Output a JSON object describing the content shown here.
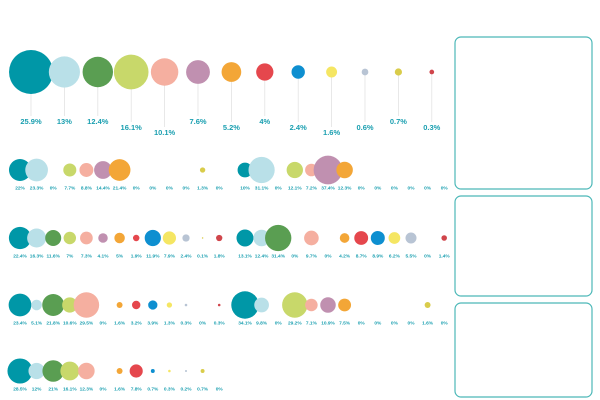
{
  "chart_data": [
    {
      "type": "bubble",
      "values": [
        25.9,
        13,
        12.4,
        16.1,
        10.1,
        7.6,
        5.2,
        4,
        2.4,
        1.6,
        0.6,
        0.7,
        0.3
      ],
      "value_labels": [
        "25.9%",
        "13%",
        "12.4%",
        "16.1%",
        "10.1%",
        "7.6%",
        "5.2%",
        "4%",
        "2.4%",
        "1.6%",
        "0.6%",
        "0.7%",
        "0.3%"
      ],
      "colors": [
        "#0097a7",
        "#b9e0e8",
        "#5a9e52",
        "#c8d86a",
        "#f5afa0",
        "#c090b0",
        "#f3a637",
        "#e5474d",
        "#0e8fd0",
        "#f5e663",
        "#b8c4d4",
        "#d9cc4a",
        "#d0454b"
      ]
    },
    {
      "type": "bubble",
      "values": [
        22,
        23.3,
        0,
        7.7,
        8.8,
        14.4,
        21.4,
        0,
        0,
        0,
        0,
        1.3,
        0
      ],
      "value_labels": [
        "22%",
        "23.3%",
        "0%",
        "7.7%",
        "8.8%",
        "14.4%",
        "21.4%",
        "0%",
        "0%",
        "0%",
        "0%",
        "1.3%",
        "0%"
      ],
      "colors": [
        "#0097a7",
        "#b9e0e8",
        "#5a9e52",
        "#c8d86a",
        "#f5afa0",
        "#c090b0",
        "#f3a637",
        "#e5474d",
        "#0e8fd0",
        "#f5e663",
        "#b8c4d4",
        "#d9cc4a",
        "#d0454b"
      ]
    },
    {
      "type": "bubble",
      "values": [
        10,
        31.1,
        0,
        12.1,
        7.2,
        37.4,
        12.3,
        0,
        0,
        0,
        0,
        0,
        0
      ],
      "value_labels": [
        "10%",
        "31.1%",
        "0%",
        "12.1%",
        "7.2%",
        "37.4%",
        "12.3%",
        "0%",
        "0%",
        "0%",
        "0%",
        "0%",
        "0%"
      ],
      "colors": [
        "#0097a7",
        "#b9e0e8",
        "#5a9e52",
        "#c8d86a",
        "#f5afa0",
        "#c090b0",
        "#f3a637",
        "#e5474d",
        "#0e8fd0",
        "#f5e663",
        "#b8c4d4",
        "#d9cc4a",
        "#d0454b"
      ]
    },
    {
      "type": "bubble",
      "values": [
        22.4,
        16.3,
        11.6,
        7,
        7.3,
        4.1,
        5,
        1.9,
        11.9,
        7.9,
        2.4,
        0.1,
        1.8
      ],
      "value_labels": [
        "22.4%",
        "16.3%",
        "11.6%",
        "7%",
        "7.3%",
        "4.1%",
        "5%",
        "1.9%",
        "11.9%",
        "7.9%",
        "2.4%",
        "0.1%",
        "1.8%"
      ],
      "colors": [
        "#0097a7",
        "#b9e0e8",
        "#5a9e52",
        "#c8d86a",
        "#f5afa0",
        "#c090b0",
        "#f3a637",
        "#e5474d",
        "#0e8fd0",
        "#f5e663",
        "#b8c4d4",
        "#d9cc4a",
        "#d0454b"
      ]
    },
    {
      "type": "bubble",
      "values": [
        13.1,
        12.4,
        31.4,
        0,
        9.7,
        0,
        4.2,
        8.7,
        8.9,
        6.2,
        5.5,
        0,
        1.4
      ],
      "value_labels": [
        "13.1%",
        "12.4%",
        "31.4%",
        "0%",
        "9.7%",
        "0%",
        "4.2%",
        "8.7%",
        "8.9%",
        "6.2%",
        "5.5%",
        "0%",
        "1.4%"
      ],
      "colors": [
        "#0097a7",
        "#b9e0e8",
        "#5a9e52",
        "#c8d86a",
        "#f5afa0",
        "#c090b0",
        "#f3a637",
        "#e5474d",
        "#0e8fd0",
        "#f5e663",
        "#b8c4d4",
        "#d9cc4a",
        "#d0454b"
      ]
    },
    {
      "type": "bubble",
      "values": [
        23.4,
        5.1,
        21.8,
        10.6,
        29.5,
        0,
        1.6,
        3.2,
        3.9,
        1.3,
        0.3,
        0,
        0.3
      ],
      "value_labels": [
        "23.4%",
        "5.1%",
        "21.8%",
        "10.6%",
        "29.5%",
        "0%",
        "1.6%",
        "3.2%",
        "3.9%",
        "1.3%",
        "0.3%",
        "0%",
        "0.3%"
      ],
      "colors": [
        "#0097a7",
        "#b9e0e8",
        "#5a9e52",
        "#c8d86a",
        "#f5afa0",
        "#c090b0",
        "#f3a637",
        "#e5474d",
        "#0e8fd0",
        "#f5e663",
        "#b8c4d4",
        "#d9cc4a",
        "#d0454b"
      ]
    },
    {
      "type": "bubble",
      "values": [
        34.1,
        9.8,
        0,
        29.2,
        7.1,
        10.9,
        7.5,
        0,
        0,
        0,
        0,
        1.6,
        0
      ],
      "value_labels": [
        "34.1%",
        "9.8%",
        "0%",
        "29.2%",
        "7.1%",
        "10.9%",
        "7.5%",
        "0%",
        "0%",
        "0%",
        "0%",
        "1.6%",
        "0%"
      ],
      "colors": [
        "#0097a7",
        "#b9e0e8",
        "#5a9e52",
        "#c8d86a",
        "#f5afa0",
        "#c090b0",
        "#f3a637",
        "#e5474d",
        "#0e8fd0",
        "#f5e663",
        "#b8c4d4",
        "#d9cc4a",
        "#d0454b"
      ]
    },
    {
      "type": "bubble",
      "values": [
        28.5,
        12,
        21,
        16.1,
        12.3,
        0,
        1.6,
        7.8,
        0.7,
        0.3,
        0.2,
        0.7,
        0
      ],
      "value_labels": [
        "28.5%",
        "12%",
        "21%",
        "16.1%",
        "12.3%",
        "0%",
        "1.6%",
        "7.8%",
        "0.7%",
        "0.3%",
        "0.2%",
        "0.7%",
        "0%"
      ],
      "colors": [
        "#0097a7",
        "#b9e0e8",
        "#5a9e52",
        "#c8d86a",
        "#f5afa0",
        "#c090b0",
        "#f3a637",
        "#e5474d",
        "#0e8fd0",
        "#f5e663",
        "#b8c4d4",
        "#d9cc4a",
        "#d0454b"
      ]
    }
  ]
}
